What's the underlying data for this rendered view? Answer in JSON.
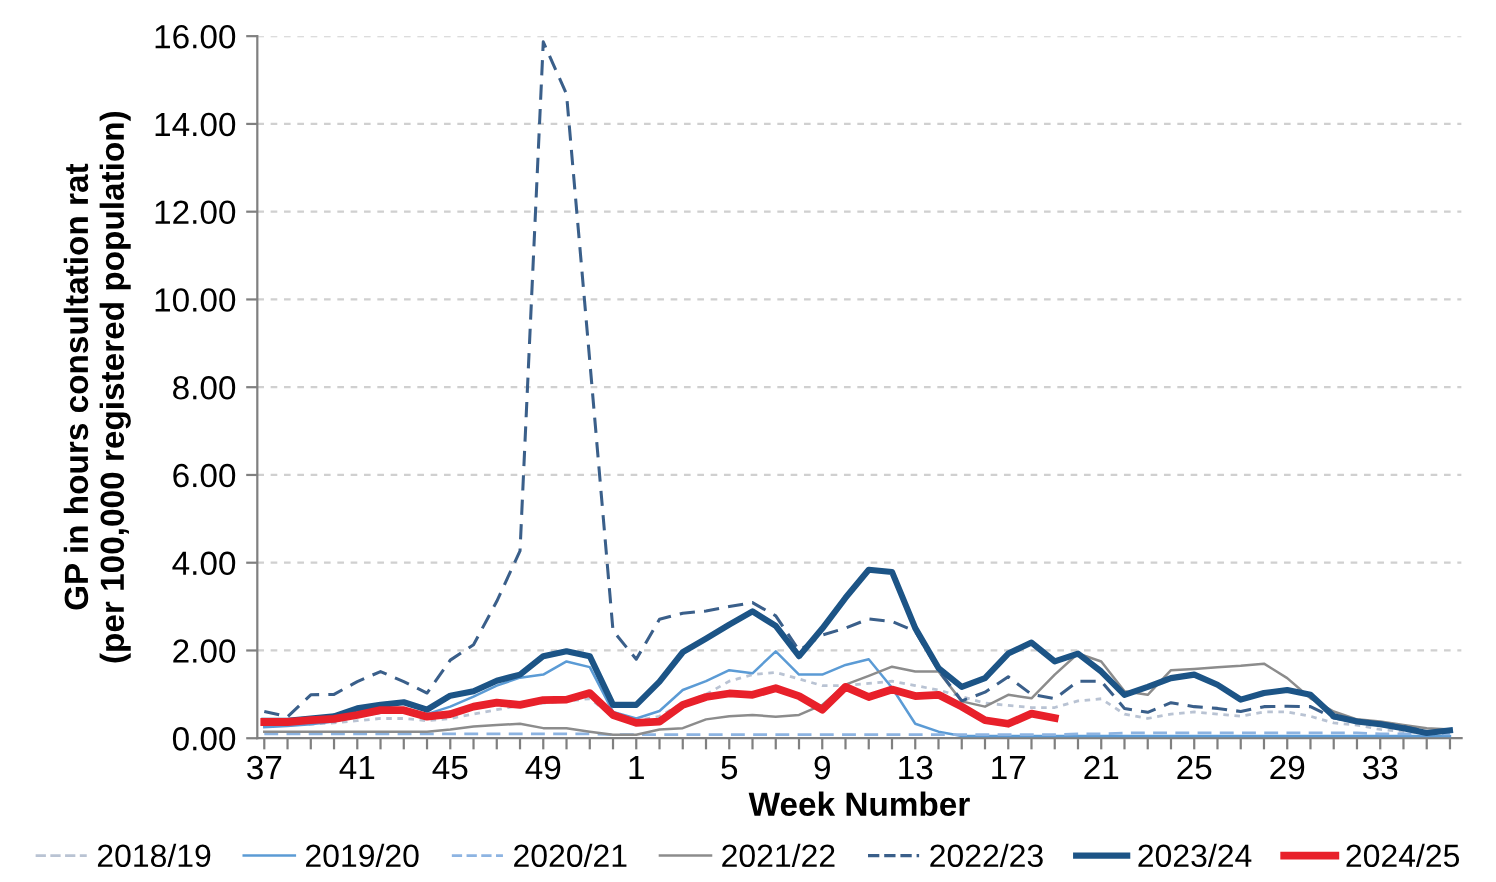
{
  "chart_data": {
    "type": "line",
    "xlabel": "Week Number",
    "ylabel": "GP in hours consultation rat\n(per 100,000 registered population)",
    "categories": [
      "37",
      null,
      null,
      null,
      "41",
      null,
      null,
      null,
      "45",
      null,
      null,
      null,
      "49",
      null,
      null,
      null,
      "1",
      null,
      null,
      null,
      "5",
      null,
      null,
      null,
      "9",
      null,
      null,
      null,
      "13",
      null,
      null,
      null,
      "17",
      null,
      null,
      null,
      "21",
      null,
      null,
      null,
      "25",
      null,
      null,
      null,
      "29",
      null,
      null,
      null,
      "33",
      null,
      null,
      null
    ],
    "ylim": [
      0,
      16
    ],
    "yticks": [
      {
        "value": 0,
        "label": "0.00"
      },
      {
        "value": 2,
        "label": "2.00"
      },
      {
        "value": 4,
        "label": "4.00"
      },
      {
        "value": 6,
        "label": "6.00"
      },
      {
        "value": 8,
        "label": "8.00"
      },
      {
        "value": 10,
        "label": "10.00"
      },
      {
        "value": 12,
        "label": "12.00"
      },
      {
        "value": 14,
        "label": "14.00"
      },
      {
        "value": 16,
        "label": "16.00"
      }
    ],
    "grid": "y",
    "legend": "bottom",
    "marker": "none",
    "series": [
      {
        "name": "2018/19",
        "color": "#b9c3d3",
        "line_style": "dotted",
        "values": [
          0.3,
          0.3,
          0.32,
          0.35,
          0.4,
          0.45,
          0.45,
          0.4,
          0.45,
          0.55,
          0.65,
          0.75,
          0.8,
          0.85,
          0.9,
          0.5,
          0.4,
          0.5,
          0.8,
          1.0,
          1.3,
          1.45,
          1.5,
          1.35,
          1.2,
          1.2,
          1.25,
          1.3,
          1.2,
          1.1,
          0.95,
          0.8,
          0.75,
          0.7,
          0.7,
          0.85,
          0.9,
          0.55,
          0.45,
          0.55,
          0.6,
          0.55,
          0.5,
          0.6,
          0.6,
          0.5,
          0.35,
          0.3,
          0.2,
          0.15,
          0.12,
          0.1
        ]
      },
      {
        "name": "2019/20",
        "color": "#5b9bd5",
        "line_style": "solid",
        "values": [
          0.25,
          0.28,
          0.32,
          0.38,
          0.5,
          0.58,
          0.62,
          0.55,
          0.72,
          0.95,
          1.2,
          1.38,
          1.45,
          1.75,
          1.62,
          0.6,
          0.45,
          0.62,
          1.1,
          1.3,
          1.55,
          1.48,
          1.98,
          1.45,
          1.45,
          1.67,
          1.8,
          1.15,
          0.33,
          0.15,
          0.05,
          0.05,
          0.05,
          0.05,
          0.05,
          0.05,
          0.05,
          0.05,
          0.05,
          0.05,
          0.05,
          0.05,
          0.05,
          0.05,
          0.05,
          0.05,
          0.05,
          0.05,
          0.05,
          0.05,
          0.05,
          0.05
        ]
      },
      {
        "name": "2020/21",
        "color": "#8db4e2",
        "line_style": "dashed",
        "values": [
          0.1,
          0.1,
          0.1,
          0.1,
          0.1,
          0.1,
          0.1,
          0.1,
          0.1,
          0.1,
          0.1,
          0.1,
          0.1,
          0.1,
          0.1,
          0.08,
          0.08,
          0.08,
          0.08,
          0.08,
          0.08,
          0.08,
          0.08,
          0.08,
          0.08,
          0.08,
          0.08,
          0.08,
          0.08,
          0.08,
          0.08,
          0.08,
          0.08,
          0.08,
          0.08,
          0.1,
          0.1,
          0.12,
          0.12,
          0.12,
          0.12,
          0.12,
          0.12,
          0.12,
          0.12,
          0.12,
          0.12,
          0.12,
          0.1,
          0.1,
          0.1,
          0.1
        ]
      },
      {
        "name": "2021/22",
        "color": "#8c8c8c",
        "line_style": "solid",
        "values": [
          0.15,
          0.15,
          0.15,
          0.15,
          0.15,
          0.15,
          0.15,
          0.15,
          0.2,
          0.27,
          0.3,
          0.33,
          0.23,
          0.23,
          0.15,
          0.08,
          0.08,
          0.2,
          0.23,
          0.43,
          0.5,
          0.53,
          0.49,
          0.53,
          0.76,
          1.22,
          1.42,
          1.63,
          1.52,
          1.52,
          0.84,
          0.72,
          0.99,
          0.91,
          1.45,
          1.93,
          1.75,
          1.07,
          0.99,
          1.55,
          1.58,
          1.62,
          1.65,
          1.7,
          1.37,
          0.91,
          0.61,
          0.43,
          0.38,
          0.3,
          0.23,
          0.2
        ]
      },
      {
        "name": "2022/23",
        "color": "#3a5f8a",
        "line_style": "dashed",
        "values": [
          0.61,
          0.49,
          0.99,
          1.0,
          1.29,
          1.52,
          1.29,
          1.03,
          1.78,
          2.13,
          3.12,
          4.27,
          15.87,
          14.68,
          8.6,
          2.45,
          1.8,
          2.71,
          2.85,
          2.9,
          3.0,
          3.09,
          2.79,
          2.0,
          2.35,
          2.51,
          2.72,
          2.66,
          2.44,
          1.55,
          0.85,
          1.05,
          1.4,
          1.0,
          0.9,
          1.3,
          1.3,
          0.68,
          0.59,
          0.81,
          0.72,
          0.68,
          0.61,
          0.72,
          0.73,
          0.72,
          0.46,
          0.38,
          0.35,
          0.27,
          0.15,
          0.15
        ]
      },
      {
        "name": "2023/24",
        "color": "#1c5486",
        "line_style": "solid",
        "values": [
          0.4,
          0.4,
          0.45,
          0.5,
          0.68,
          0.76,
          0.82,
          0.65,
          0.97,
          1.07,
          1.31,
          1.45,
          1.87,
          1.98,
          1.87,
          0.76,
          0.76,
          1.29,
          1.96,
          2.27,
          2.59,
          2.89,
          2.56,
          1.87,
          2.5,
          3.2,
          3.84,
          3.79,
          2.51,
          1.6,
          1.17,
          1.37,
          1.93,
          2.18,
          1.75,
          1.93,
          1.52,
          0.99,
          1.17,
          1.37,
          1.45,
          1.22,
          0.88,
          1.03,
          1.1,
          0.99,
          0.5,
          0.38,
          0.32,
          0.23,
          0.12,
          0.18
        ]
      },
      {
        "name": "2024/25",
        "color": "#e8202a",
        "line_style": "solid",
        "values": [
          0.37,
          0.37,
          0.41,
          0.44,
          0.53,
          0.64,
          0.64,
          0.49,
          0.55,
          0.72,
          0.81,
          0.76,
          0.87,
          0.88,
          1.03,
          0.53,
          0.35,
          0.38,
          0.76,
          0.94,
          1.02,
          0.99,
          1.14,
          0.96,
          0.65,
          1.17,
          0.94,
          1.11,
          0.96,
          0.99,
          0.72,
          0.41,
          0.33,
          0.56,
          0.46,
          null,
          null,
          null,
          null,
          null,
          null,
          null,
          null,
          null,
          null,
          null,
          null,
          null,
          null,
          null,
          null,
          null
        ]
      }
    ]
  }
}
